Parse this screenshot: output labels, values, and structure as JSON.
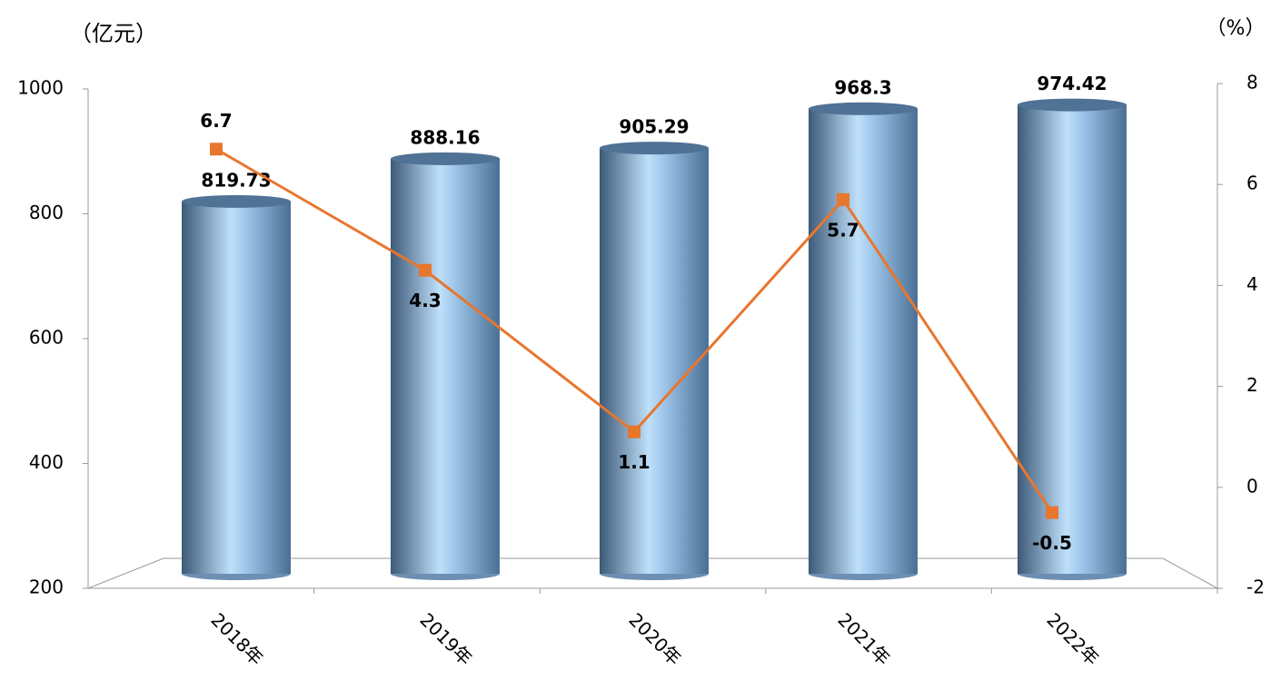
{
  "chart_data": {
    "type": "bar-line",
    "y_label": "（亿元）",
    "y2_label": "（%）",
    "categories": [
      "2018年",
      "2019年",
      "2020年",
      "2021年",
      "2022年"
    ],
    "series": [
      {
        "type": "bar",
        "color": "#8fb4dc",
        "values": [
          819.73,
          888.16,
          905.29,
          968.3,
          974.42
        ]
      },
      {
        "type": "line",
        "axis": "y2",
        "color": "#e8762d",
        "values": [
          6.7,
          4.3,
          1.1,
          5.7,
          -0.5
        ]
      }
    ],
    "ylim": [
      200,
      1000
    ],
    "yticks": [
      200,
      400,
      600,
      800,
      1000
    ],
    "y2lim": [
      -2,
      8
    ],
    "y2ticks": [
      -2,
      0,
      2,
      4,
      6,
      8
    ]
  }
}
